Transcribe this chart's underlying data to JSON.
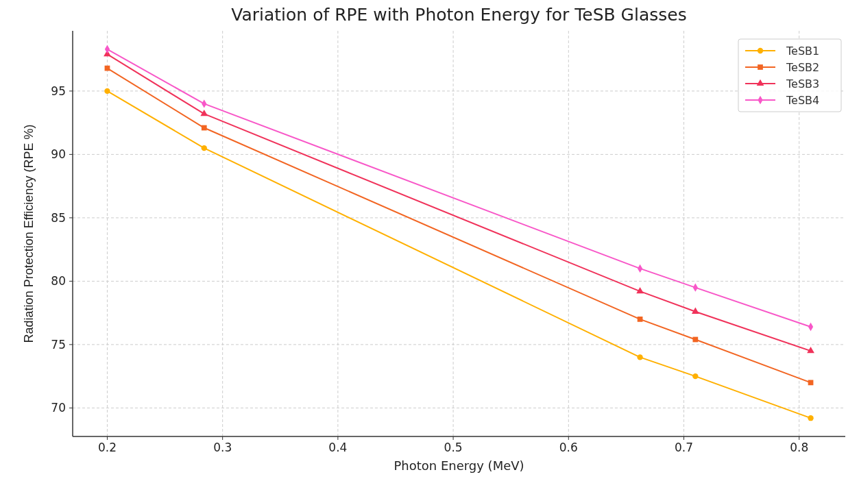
{
  "chart_data": {
    "type": "line",
    "title": "Variation of RPE with Photon Energy for TeSB Glasses",
    "xlabel": "Photon Energy (MeV)",
    "ylabel": "Radiation Protection Efficiency (RPE %)",
    "x": [
      0.2,
      0.284,
      0.662,
      0.71,
      0.81
    ],
    "series": [
      {
        "name": "TeSB1",
        "color": "#ffb000",
        "marker": "circle",
        "values": [
          95,
          90.5,
          74.0,
          72.5,
          69.2
        ]
      },
      {
        "name": "TeSB2",
        "color": "#f26522",
        "marker": "square",
        "values": [
          96.8,
          92.1,
          77.0,
          75.4,
          72.0
        ]
      },
      {
        "name": "TeSB3",
        "color": "#f0325a",
        "marker": "triangle",
        "values": [
          97.9,
          93.2,
          79.2,
          77.6,
          74.5
        ]
      },
      {
        "name": "TeSB4",
        "color": "#f857c8",
        "marker": "diamond",
        "values": [
          98.3,
          94.0,
          81.0,
          79.5,
          76.4
        ]
      }
    ],
    "xlim": [
      0.17,
      0.84
    ],
    "ylim": [
      67.75,
      99.75
    ],
    "xticks": [
      0.2,
      0.3,
      0.4,
      0.5,
      0.6,
      0.7,
      0.8
    ],
    "yticks": [
      70,
      75,
      80,
      85,
      90,
      95
    ],
    "grid": true,
    "legend": "top right",
    "line_style": "solid"
  }
}
